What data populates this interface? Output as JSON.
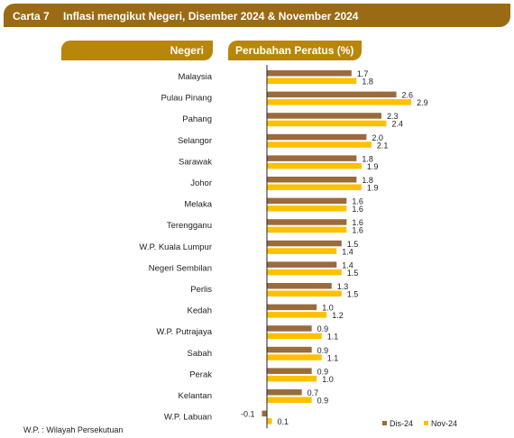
{
  "header": {
    "chart_number": "Carta 7",
    "title": "Inflasi mengikut Negeri, Disember 2024 & November 2024",
    "col_negeri": "Negeri",
    "col_perubahan": "Perubahan Peratus (%)"
  },
  "footnote": "W.P. : Wilayah Persekutuan",
  "colors": {
    "dis24": "#9a6b3c",
    "nov24": "#ffc000",
    "title_bg": "#9a6b14",
    "header_bg": "#b8860b"
  },
  "chart_data": {
    "type": "bar",
    "orientation": "horizontal",
    "categories": [
      "Malaysia",
      "Pulau Pinang",
      "Pahang",
      "Selangor",
      "Sarawak",
      "Johor",
      "Melaka",
      "Terengganu",
      "W.P. Kuala Lumpur",
      "Negeri Sembilan",
      "Perlis",
      "Kedah",
      "W.P. Putrajaya",
      "Sabah",
      "Perak",
      "Kelantan",
      "W.P. Labuan"
    ],
    "series": [
      {
        "name": "Dis-24",
        "values": [
          1.7,
          2.6,
          2.3,
          2.0,
          1.8,
          1.8,
          1.6,
          1.6,
          1.5,
          1.4,
          1.3,
          1.0,
          0.9,
          0.9,
          0.9,
          0.7,
          -0.1
        ],
        "labels": [
          "1.7",
          "2.6",
          "2.3",
          "2.0",
          "1.8",
          "1.8",
          "1.6",
          "1.6",
          "1.5",
          "1.4",
          "1.3",
          "1.0",
          "0.9",
          "0.9",
          "0.9",
          "0.7",
          "-0.1"
        ]
      },
      {
        "name": "Nov-24",
        "values": [
          1.8,
          2.9,
          2.4,
          2.1,
          1.9,
          1.9,
          1.6,
          1.6,
          1.4,
          1.5,
          1.5,
          1.2,
          1.1,
          1.1,
          1.0,
          0.9,
          0.1
        ],
        "labels": [
          "1.8",
          "2.9",
          "2.4",
          "2.1",
          "1.9",
          "1.9",
          "1.6",
          "1.6",
          "1.4",
          "1.5",
          "1.5",
          "1.2",
          "1.1",
          "1.1",
          "1.0",
          "0.9",
          "0.1"
        ]
      }
    ],
    "legend_position": "bottom-right"
  }
}
